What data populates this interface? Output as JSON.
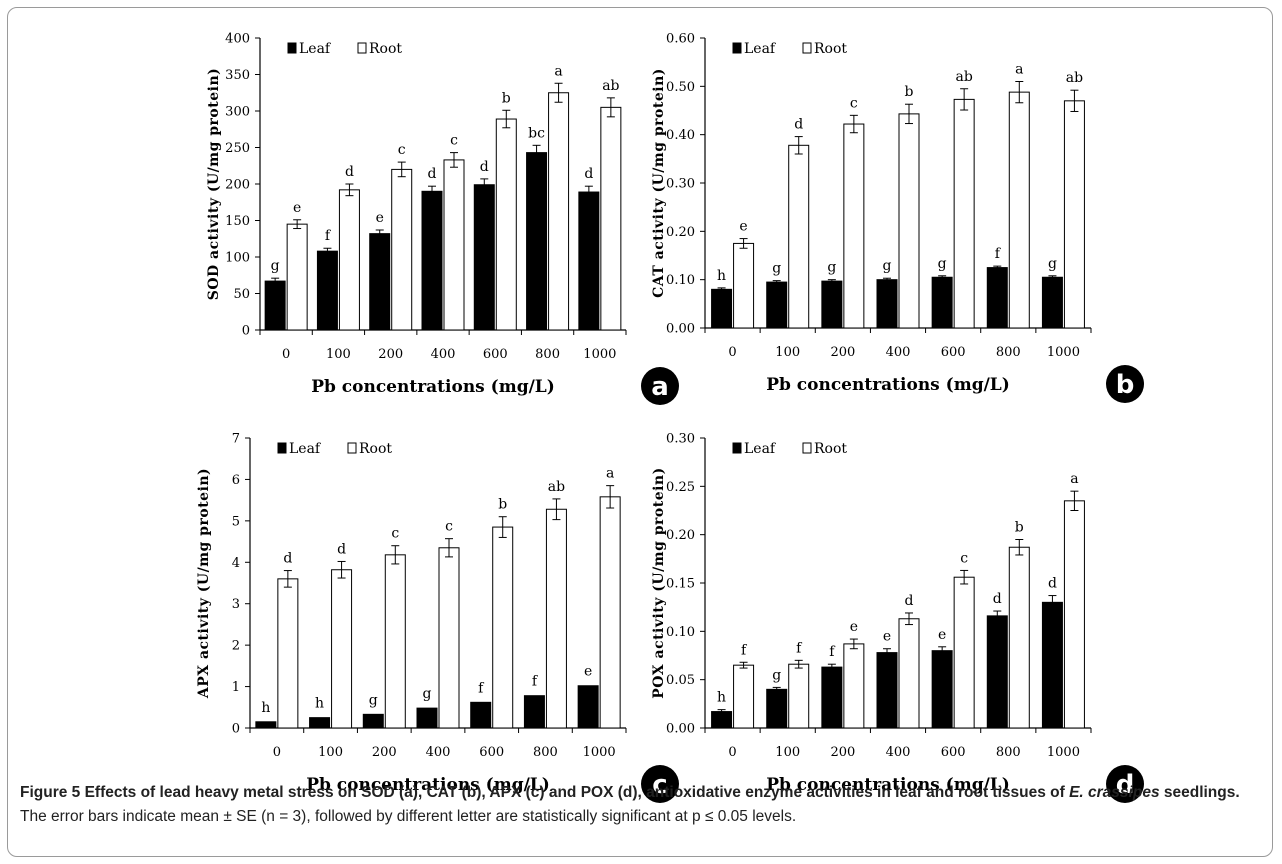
{
  "chart_data": [
    {
      "type": "bar",
      "panel_label": "a",
      "ylabel": "SOD activity (U/mg protein)",
      "xlabel": "Pb concentrations (mg/L)",
      "categories": [
        "0",
        "100",
        "200",
        "400",
        "600",
        "800",
        "1000"
      ],
      "ylim": [
        0,
        400
      ],
      "yticks": [
        "0",
        "50",
        "100",
        "150",
        "200",
        "250",
        "300",
        "350",
        "400"
      ],
      "ytick_values": [
        0,
        50,
        100,
        150,
        200,
        250,
        300,
        350,
        400
      ],
      "legend": "top-left",
      "series": [
        {
          "name": "Leaf",
          "color": "#000000",
          "values": [
            67,
            108,
            132,
            190,
            199,
            243,
            189
          ],
          "errors": [
            4,
            4,
            5,
            7,
            8,
            10,
            8
          ],
          "letters": [
            "g",
            "f",
            "e",
            "d",
            "d",
            "bc",
            "d"
          ]
        },
        {
          "name": "Root",
          "color": "#ffffff",
          "values": [
            145,
            192,
            220,
            233,
            289,
            325,
            305
          ],
          "errors": [
            6,
            8,
            10,
            10,
            12,
            13,
            13
          ],
          "letters": [
            "e",
            "d",
            "c",
            "c",
            "b",
            "a",
            "ab"
          ]
        }
      ]
    },
    {
      "type": "bar",
      "panel_label": "b",
      "ylabel": "CAT activity (U/mg protein)",
      "xlabel": "Pb concentrations (mg/L)",
      "categories": [
        "0",
        "100",
        "200",
        "400",
        "600",
        "800",
        "1000"
      ],
      "ylim": [
        0,
        0.6
      ],
      "yticks": [
        "0.00",
        "0.10",
        "0.20",
        "0.30",
        "0.40",
        "0.50",
        "0.60"
      ],
      "ytick_values": [
        0,
        0.1,
        0.2,
        0.3,
        0.4,
        0.5,
        0.6
      ],
      "legend": "top-left",
      "series": [
        {
          "name": "Leaf",
          "color": "#000000",
          "values": [
            0.08,
            0.095,
            0.097,
            0.1,
            0.105,
            0.125,
            0.105
          ],
          "errors": [
            0.003,
            0.003,
            0.003,
            0.003,
            0.003,
            0.003,
            0.003
          ],
          "letters": [
            "h",
            "g",
            "g",
            "g",
            "g",
            "f",
            "g"
          ]
        },
        {
          "name": "Root",
          "color": "#ffffff",
          "values": [
            0.175,
            0.378,
            0.422,
            0.443,
            0.473,
            0.488,
            0.47
          ],
          "errors": [
            0.01,
            0.018,
            0.018,
            0.02,
            0.022,
            0.022,
            0.022
          ],
          "letters": [
            "e",
            "d",
            "c",
            "b",
            "ab",
            "a",
            "ab"
          ]
        }
      ]
    },
    {
      "type": "bar",
      "panel_label": "c",
      "ylabel": "APX activity (U/mg protein)",
      "xlabel": "Pb concentrations (mg/L)",
      "categories": [
        "0",
        "100",
        "200",
        "400",
        "600",
        "800",
        "1000"
      ],
      "ylim": [
        0,
        7
      ],
      "yticks": [
        "0",
        "1",
        "2",
        "3",
        "4",
        "5",
        "6",
        "7"
      ],
      "ytick_values": [
        0,
        1,
        2,
        3,
        4,
        5,
        6,
        7
      ],
      "legend": "top-left",
      "series": [
        {
          "name": "Leaf",
          "color": "#000000",
          "values": [
            0.15,
            0.25,
            0.33,
            0.48,
            0.62,
            0.78,
            1.02
          ],
          "errors": [
            0,
            0,
            0,
            0,
            0,
            0,
            0
          ],
          "letters": [
            "h",
            "h",
            "g",
            "g",
            "f",
            "f",
            "e"
          ]
        },
        {
          "name": "Root",
          "color": "#ffffff",
          "values": [
            3.6,
            3.82,
            4.18,
            4.35,
            4.85,
            5.28,
            5.58
          ],
          "errors": [
            0.2,
            0.2,
            0.22,
            0.22,
            0.25,
            0.25,
            0.27
          ],
          "letters": [
            "d",
            "d",
            "c",
            "c",
            "b",
            "ab",
            "a"
          ]
        }
      ]
    },
    {
      "type": "bar",
      "panel_label": "d",
      "ylabel": "POX activity (U/mg protein)",
      "xlabel": "Pb concentrations (mg/L)",
      "categories": [
        "0",
        "100",
        "200",
        "400",
        "600",
        "800",
        "1000"
      ],
      "ylim": [
        0,
        0.3
      ],
      "yticks": [
        "0.00",
        "0.05",
        "0.10",
        "0.15",
        "0.20",
        "0.25",
        "0.30"
      ],
      "ytick_values": [
        0,
        0.05,
        0.1,
        0.15,
        0.2,
        0.25,
        0.3
      ],
      "legend": "top-left",
      "series": [
        {
          "name": "Leaf",
          "color": "#000000",
          "values": [
            0.017,
            0.04,
            0.063,
            0.078,
            0.08,
            0.116,
            0.13
          ],
          "errors": [
            0.002,
            0.002,
            0.003,
            0.004,
            0.004,
            0.005,
            0.007
          ],
          "letters": [
            "h",
            "g",
            "f",
            "e",
            "e",
            "d",
            "d"
          ]
        },
        {
          "name": "Root",
          "color": "#ffffff",
          "values": [
            0.065,
            0.066,
            0.087,
            0.113,
            0.156,
            0.187,
            0.235
          ],
          "errors": [
            0.003,
            0.004,
            0.005,
            0.006,
            0.007,
            0.008,
            0.01
          ],
          "letters": [
            "f",
            "f",
            "e",
            "d",
            "c",
            "b",
            "a"
          ]
        }
      ]
    }
  ],
  "caption": {
    "title_prefix": "Figure 5 Effects of lead heavy metal stress on SOD (a), CAT (b), APX (c) and POX (d), antioxidative enzyme activities in leaf and root tissues of ",
    "title_species": "E. crassipes",
    "title_suffix": " seedlings.",
    "body": " The error bars indicate mean ± SE (n = 3), followed by different letter are statistically significant at p ≤ 0.05 levels."
  }
}
